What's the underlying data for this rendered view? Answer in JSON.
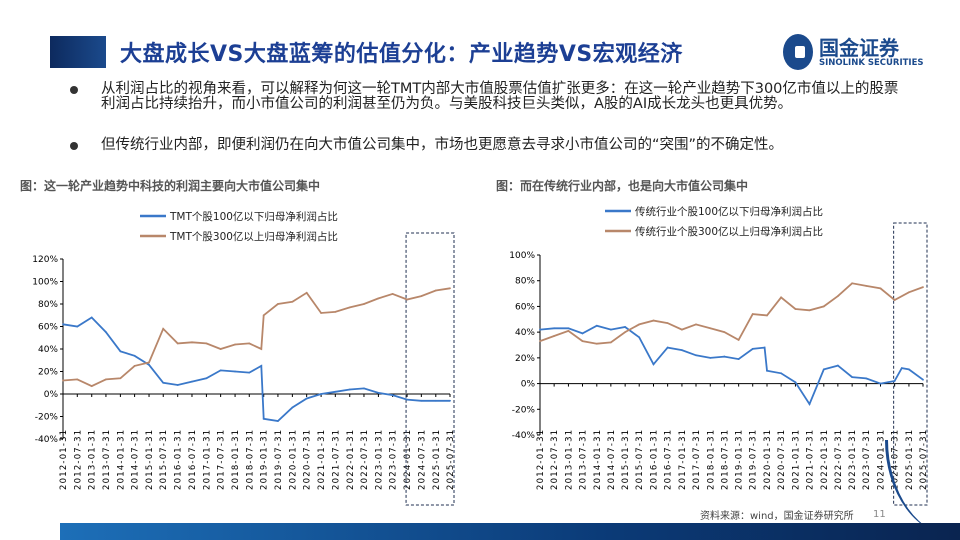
{
  "header": {
    "title": "大盘成长VS大盘蓝筹的估值分化：产业趋势VS宏观经济",
    "logo_cn": "国金证券",
    "logo_en": "SINOLINK SECURITIES"
  },
  "bullets": [
    "从利润占比的视角来看，可以解释为何这一轮TMT内部大市值股票估值扩张更多：在这一轮产业趋势下300亿市值以上的股票利润占比持续抬升，而小市值公司的利润甚至仍为负。与美股科技巨头类似，A股的AI成长龙头也更具优势。",
    "但传统行业内部，即便利润仍在向大市值公司集中，市场也更愿意去寻求小市值公司的“突围”的不确定性。"
  ],
  "footer": {
    "source": "资料来源：wind，国金证券研究所",
    "page": "11"
  },
  "colors": {
    "blue": "#3a78c9",
    "brown": "#b8876a",
    "title": "#1c3f94"
  },
  "chart_data": [
    {
      "type": "line",
      "title": "图：这一轮产业趋势中科技的利润主要向大市值公司集中",
      "ylim": [
        -0.4,
        1.2
      ],
      "yticks": [
        "120%",
        "100%",
        "80%",
        "60%",
        "40%",
        "20%",
        "0%",
        "-20%",
        "-40%"
      ],
      "categories": [
        "2012-01-31",
        "2012-07-31",
        "2013-01-31",
        "2013-07-31",
        "2014-01-31",
        "2014-07-31",
        "2015-01-31",
        "2015-07-31",
        "2016-01-31",
        "2016-07-31",
        "2017-01-31",
        "2017-07-31",
        "2018-01-31",
        "2018-07-31",
        "2019-01-31",
        "2019-07-31",
        "2020-01-31",
        "2020-07-31",
        "2021-01-31",
        "2021-07-31",
        "2022-01-31",
        "2022-07-31",
        "2023-01-31",
        "2023-07-31",
        "2024-01-31",
        "2024-07-31",
        "2025-01-31",
        "2025-07-31"
      ],
      "highlight_range": [
        "2024-01-31",
        "2025-07-31"
      ],
      "legend": "top-center",
      "series": [
        {
          "name": "TMT个股100亿以下归母净利润占比",
          "color": "#3a78c9",
          "x": [
            "2012-01-31",
            "2012-07-31",
            "2013-01-31",
            "2013-07-31",
            "2014-01-31",
            "2014-07-31",
            "2015-01-31",
            "2015-07-31",
            "2016-01-31",
            "2016-07-31",
            "2017-01-31",
            "2017-07-31",
            "2018-01-31",
            "2018-07-31",
            "2018-12-31",
            "2019-01-31",
            "2019-07-31",
            "2020-01-31",
            "2020-07-31",
            "2021-01-31",
            "2021-07-31",
            "2022-01-31",
            "2022-07-31",
            "2023-01-31",
            "2023-07-31",
            "2024-01-31",
            "2024-07-31",
            "2025-01-31",
            "2025-07-31"
          ],
          "values": [
            0.62,
            0.6,
            0.68,
            0.55,
            0.38,
            0.34,
            0.26,
            0.1,
            0.08,
            0.11,
            0.14,
            0.21,
            0.2,
            0.19,
            0.25,
            -0.22,
            -0.24,
            -0.12,
            -0.04,
            0.0,
            0.02,
            0.04,
            0.05,
            0.01,
            -0.01,
            -0.05,
            -0.06,
            -0.06,
            -0.06
          ]
        },
        {
          "name": "TMT个股300亿以上归母净利润占比",
          "color": "#b8876a",
          "x": [
            "2012-01-31",
            "2012-07-31",
            "2013-01-31",
            "2013-07-31",
            "2014-01-31",
            "2014-07-31",
            "2015-01-31",
            "2015-07-31",
            "2016-01-31",
            "2016-07-31",
            "2017-01-31",
            "2017-07-31",
            "2018-01-31",
            "2018-07-31",
            "2018-12-31",
            "2019-01-31",
            "2019-07-31",
            "2020-01-31",
            "2020-07-31",
            "2021-01-31",
            "2021-07-31",
            "2022-01-31",
            "2022-07-31",
            "2023-01-31",
            "2023-07-31",
            "2024-01-31",
            "2024-07-31",
            "2025-01-31",
            "2025-07-31"
          ],
          "values": [
            0.12,
            0.13,
            0.07,
            0.13,
            0.14,
            0.25,
            0.28,
            0.58,
            0.45,
            0.46,
            0.45,
            0.4,
            0.44,
            0.45,
            0.4,
            0.7,
            0.8,
            0.82,
            0.9,
            0.72,
            0.73,
            0.77,
            0.8,
            0.85,
            0.89,
            0.84,
            0.87,
            0.92,
            0.94
          ]
        }
      ]
    },
    {
      "type": "line",
      "title": "图：而在传统行业内部，也是向大市值公司集中",
      "ylim": [
        -0.4,
        1.0
      ],
      "yticks": [
        "100%",
        "80%",
        "60%",
        "40%",
        "20%",
        "0%",
        "-20%",
        "-40%"
      ],
      "categories": [
        "2012-01-31",
        "2012-07-31",
        "2013-01-31",
        "2013-07-31",
        "2014-01-31",
        "2014-07-31",
        "2015-01-31",
        "2015-07-31",
        "2016-01-31",
        "2016-07-31",
        "2017-01-31",
        "2017-07-31",
        "2018-01-31",
        "2018-07-31",
        "2019-01-31",
        "2019-07-31",
        "2020-01-31",
        "2020-07-31",
        "2021-01-31",
        "2021-07-31",
        "2022-01-31",
        "2022-07-31",
        "2023-01-31",
        "2023-07-31",
        "2024-01-31",
        "2024-07-31",
        "2025-01-31",
        "2025-07-31"
      ],
      "highlight_range": [
        "2024-07-31",
        "2025-07-31"
      ],
      "legend": "top-center",
      "series": [
        {
          "name": "传统行业个股100亿以下归母净利润占比",
          "color": "#3a78c9",
          "x": [
            "2012-01-31",
            "2012-07-31",
            "2013-01-31",
            "2013-07-31",
            "2014-01-31",
            "2014-07-31",
            "2015-01-31",
            "2015-07-31",
            "2016-01-31",
            "2016-07-31",
            "2017-01-31",
            "2017-07-31",
            "2018-01-31",
            "2018-07-31",
            "2019-01-31",
            "2019-07-31",
            "2019-12-31",
            "2020-01-31",
            "2020-07-31",
            "2021-01-31",
            "2021-07-31",
            "2022-01-31",
            "2022-07-31",
            "2023-01-31",
            "2023-07-31",
            "2024-01-31",
            "2024-07-31",
            "2024-10-31",
            "2025-01-31",
            "2025-07-31"
          ],
          "values": [
            0.42,
            0.43,
            0.43,
            0.39,
            0.45,
            0.42,
            0.44,
            0.36,
            0.15,
            0.28,
            0.26,
            0.22,
            0.2,
            0.21,
            0.19,
            0.27,
            0.28,
            0.1,
            0.08,
            0.01,
            -0.16,
            0.11,
            0.14,
            0.05,
            0.04,
            0.0,
            0.02,
            0.12,
            0.11,
            0.03
          ]
        },
        {
          "name": "传统行业个股300亿以上归母净利润占比",
          "color": "#b8876a",
          "x": [
            "2012-01-31",
            "2012-07-31",
            "2013-01-31",
            "2013-07-31",
            "2014-01-31",
            "2014-07-31",
            "2015-01-31",
            "2015-07-31",
            "2016-01-31",
            "2016-07-31",
            "2017-01-31",
            "2017-07-31",
            "2018-01-31",
            "2018-07-31",
            "2019-01-31",
            "2019-07-31",
            "2020-01-31",
            "2020-07-31",
            "2021-01-31",
            "2021-07-31",
            "2022-01-31",
            "2022-07-31",
            "2023-01-31",
            "2023-07-31",
            "2024-01-31",
            "2024-07-31",
            "2025-01-31",
            "2025-07-31"
          ],
          "values": [
            0.33,
            0.37,
            0.41,
            0.33,
            0.31,
            0.32,
            0.4,
            0.46,
            0.49,
            0.47,
            0.42,
            0.46,
            0.43,
            0.4,
            0.34,
            0.54,
            0.53,
            0.67,
            0.58,
            0.57,
            0.6,
            0.68,
            0.78,
            0.76,
            0.74,
            0.65,
            0.71,
            0.75
          ]
        }
      ]
    }
  ]
}
